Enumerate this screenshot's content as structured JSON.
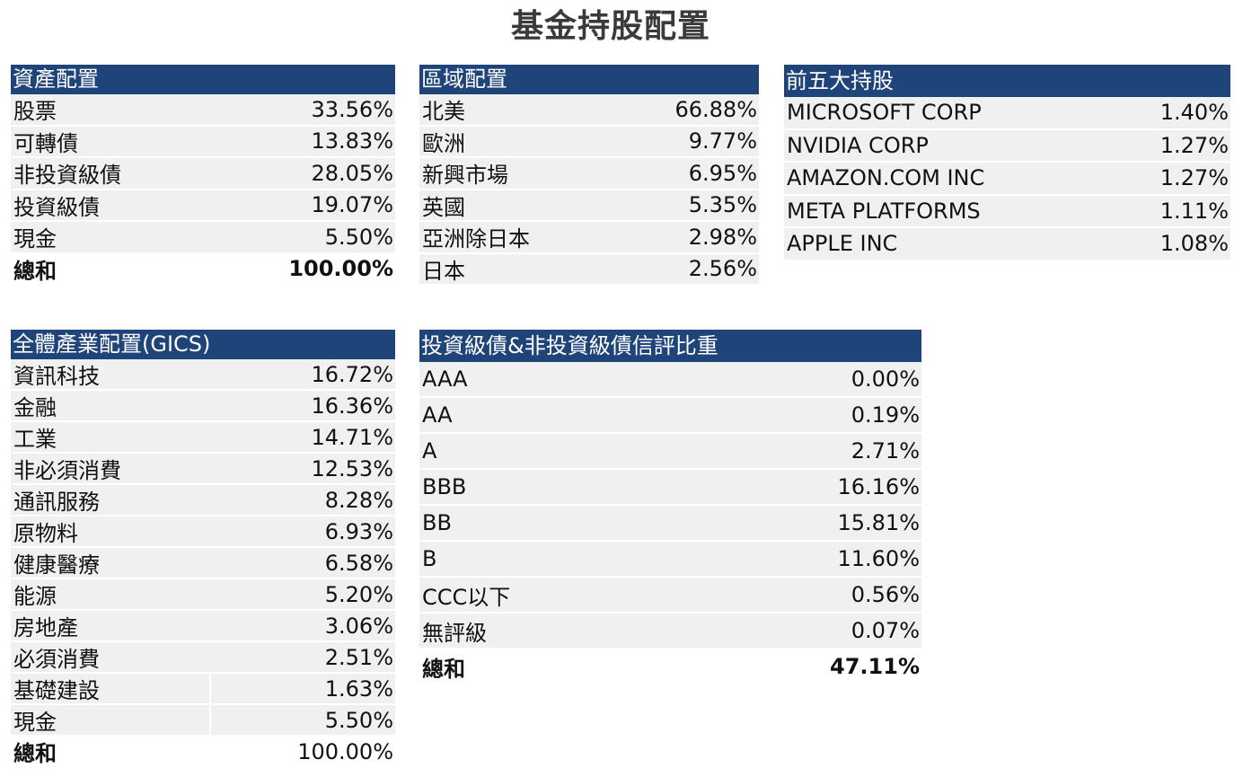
{
  "title": "基金持股配置",
  "asset_allocation": {
    "header": "資產配置",
    "rows": [
      {
        "label": "股票",
        "value": "33.56%"
      },
      {
        "label": "可轉債",
        "value": "13.83%"
      },
      {
        "label": "非投資級債",
        "value": "28.05%"
      },
      {
        "label": "投資級債",
        "value": "19.07%"
      },
      {
        "label": "現金",
        "value": "5.50%"
      }
    ],
    "total": {
      "label": "總和",
      "value": "100.00%"
    }
  },
  "region_allocation": {
    "header": "區域配置",
    "rows": [
      {
        "label": "北美",
        "value": "66.88%"
      },
      {
        "label": "歐洲",
        "value": "9.77%"
      },
      {
        "label": "新興市場",
        "value": "6.95%"
      },
      {
        "label": "英國",
        "value": "5.35%"
      },
      {
        "label": "亞洲除日本",
        "value": "2.98%"
      },
      {
        "label": "日本",
        "value": "2.56%"
      }
    ]
  },
  "top_holdings": {
    "header": "前五大持股",
    "rows": [
      {
        "label": "MICROSOFT CORP",
        "value": "1.40%"
      },
      {
        "label": "NVIDIA CORP",
        "value": "1.27%"
      },
      {
        "label": "AMAZON.COM INC",
        "value": "1.27%"
      },
      {
        "label": "META PLATFORMS",
        "value": "1.11%"
      },
      {
        "label": "APPLE INC",
        "value": "1.08%"
      }
    ]
  },
  "sector_allocation": {
    "header": "全體產業配置(GICS)",
    "rows": [
      {
        "label": "資訊科技",
        "value": "16.72%"
      },
      {
        "label": "金融",
        "value": "16.36%"
      },
      {
        "label": "工業",
        "value": "14.71%"
      },
      {
        "label": "非必須消費",
        "value": "12.53%"
      },
      {
        "label": "通訊服務",
        "value": "8.28%"
      },
      {
        "label": "原物料",
        "value": "6.93%"
      },
      {
        "label": "健康醫療",
        "value": "6.58%"
      },
      {
        "label": "能源",
        "value": "5.20%"
      },
      {
        "label": "房地產",
        "value": "3.06%"
      },
      {
        "label": "必須消費",
        "value": "2.51%"
      },
      {
        "label": "基礎建設",
        "value": "1.63%"
      },
      {
        "label": "現金",
        "value": "5.50%"
      }
    ],
    "total": {
      "label": "總和",
      "value": "100.00%"
    }
  },
  "credit_rating": {
    "header": "投資級債&非投資級債信評比重",
    "rows": [
      {
        "label": "AAA",
        "value": "0.00%"
      },
      {
        "label": "AA",
        "value": "0.19%"
      },
      {
        "label": "A",
        "value": "2.71%"
      },
      {
        "label": "BBB",
        "value": "16.16%"
      },
      {
        "label": "BB",
        "value": "15.81%"
      },
      {
        "label": "B",
        "value": "11.60%"
      },
      {
        "label": "CCC以下",
        "value": "0.56%"
      },
      {
        "label": "無評級",
        "value": "0.07%"
      }
    ],
    "total": {
      "label": "總和",
      "value": "47.11%"
    }
  },
  "colors": {
    "header_bg": "#1f4479",
    "row_bg": "#f0f0f0",
    "title": "#3a3a3a"
  }
}
